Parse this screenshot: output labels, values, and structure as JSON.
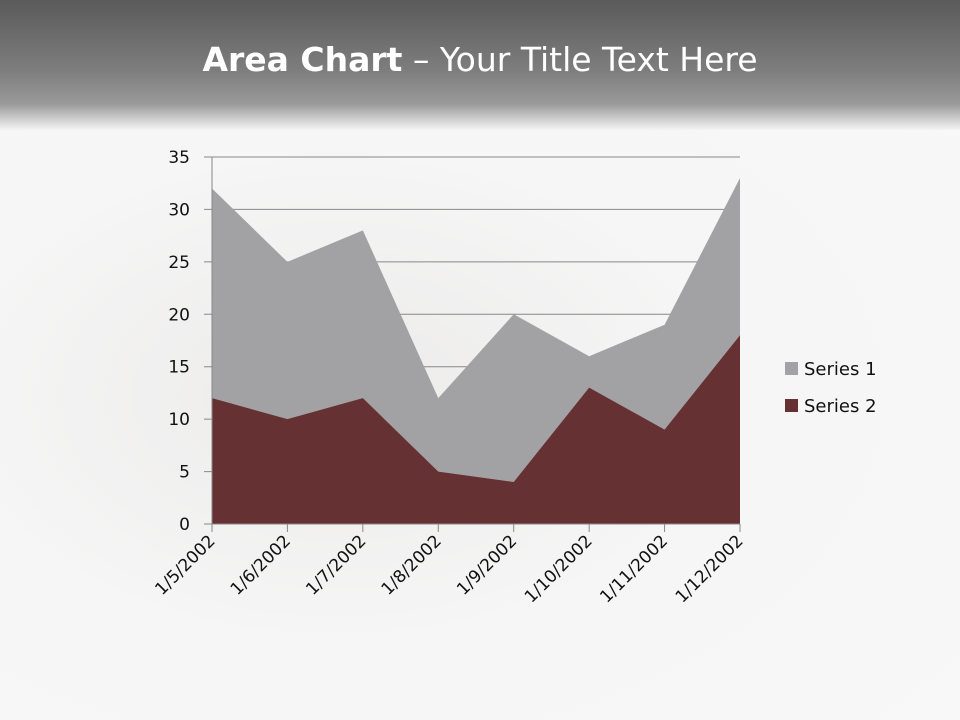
{
  "title": {
    "bold": "Area Chart",
    "rest": " – Your Title Text Here"
  },
  "chart_data": {
    "type": "area",
    "title": "Area Chart – Your Title Text Here",
    "categories": [
      "1/5/2002",
      "1/6/2002",
      "1/7/2002",
      "1/8/2002",
      "1/9/2002",
      "1/10/2002",
      "1/11/2002",
      "1/12/2002"
    ],
    "series": [
      {
        "name": "Series 1",
        "values": [
          32,
          25,
          28,
          12,
          20,
          16,
          19,
          33
        ],
        "color": "#a2a2a4"
      },
      {
        "name": "Series 2",
        "values": [
          12,
          10,
          12,
          5,
          4,
          13,
          9,
          18
        ],
        "color": "#663133"
      }
    ],
    "ylim": [
      0,
      35
    ],
    "yticks": [
      0,
      5,
      10,
      15,
      20,
      25,
      30,
      35
    ],
    "grid": true,
    "legend": "right"
  }
}
